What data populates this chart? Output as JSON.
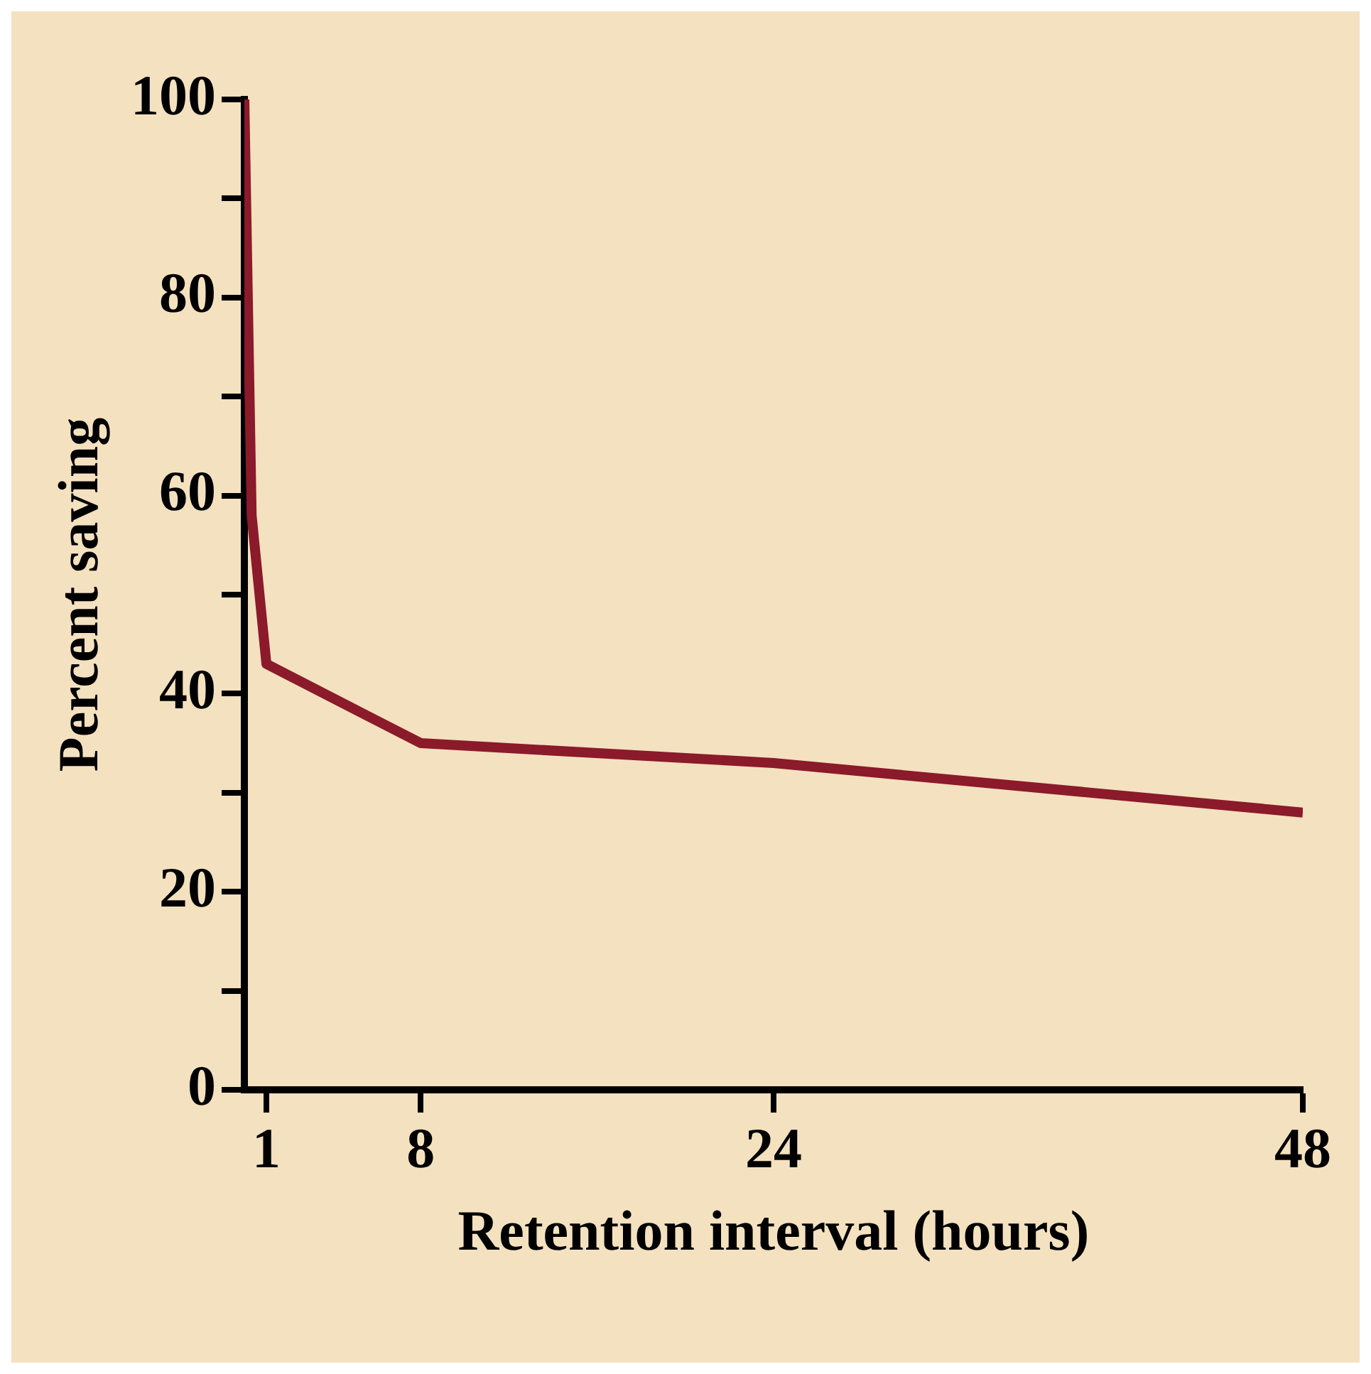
{
  "chart_data": {
    "type": "line",
    "xlabel": "Retention interval (hours)",
    "ylabel": "Percent saving",
    "x": [
      0,
      0.33,
      1,
      8,
      24,
      48
    ],
    "series": [
      {
        "color": "#8b1a2a",
        "values": [
          100,
          58,
          43,
          35,
          33,
          28
        ]
      }
    ],
    "xlim": [
      0,
      48
    ],
    "xticks": [
      1,
      8,
      24,
      48
    ],
    "ylim": [
      0,
      100
    ],
    "yticks": [
      0,
      {
        "value": 10,
        "label": null
      },
      20,
      {
        "value": 30,
        "label": null
      },
      40,
      {
        "value": 50,
        "label": null
      },
      60,
      {
        "value": 70,
        "label": null
      },
      80,
      {
        "value": 90,
        "label": null
      },
      100
    ],
    "grid": false,
    "legend": false,
    "marker": "none",
    "line_style": "solid"
  }
}
